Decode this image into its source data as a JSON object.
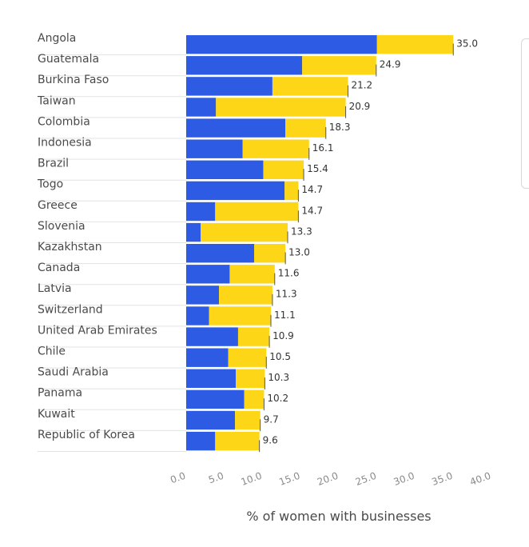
{
  "chart_data": {
    "type": "bar",
    "orientation": "horizontal",
    "stacked": true,
    "categories": [
      "Angola",
      "Guatemala",
      "Burkina Faso",
      "Taiwan",
      "Colombia",
      "Indonesia",
      "Brazil",
      "Togo",
      "Greece",
      "Slovenia",
      "Kazakhstan",
      "Canada",
      "Latvia",
      "Switzerland",
      "United Arab Emirates",
      "Chile",
      "Saudi Arabia",
      "Panama",
      "Kuwait",
      "Republic of Korea"
    ],
    "series": [
      {
        "color": "#2d5be3",
        "values": [
          25.0,
          15.2,
          11.3,
          3.9,
          13.0,
          7.4,
          10.1,
          12.9,
          3.8,
          1.9,
          8.9,
          5.7,
          4.3,
          3.0,
          6.8,
          5.5,
          6.5,
          7.6,
          6.4,
          3.8
        ]
      },
      {
        "color": "#fcd617",
        "values": [
          10.0,
          9.7,
          9.9,
          17.0,
          5.3,
          8.7,
          5.3,
          1.8,
          10.9,
          11.4,
          4.1,
          5.9,
          7.0,
          8.1,
          4.1,
          5.0,
          3.8,
          2.6,
          3.3,
          5.8
        ]
      }
    ],
    "totals": [
      "35.0",
      "24.9",
      "21.2",
      "20.9",
      "18.3",
      "16.1",
      "15.4",
      "14.7",
      "14.7",
      "13.3",
      "13.0",
      "11.6",
      "11.3",
      "11.1",
      "10.9",
      "10.5",
      "10.3",
      "10.2",
      "9.7",
      "9.6"
    ],
    "xlim": [
      0,
      40
    ],
    "xticks": [
      "0.0",
      "5.0",
      "10.0",
      "15.0",
      "20.0",
      "25.0",
      "30.0",
      "35.0",
      "40.0"
    ],
    "xlabel": "% of women with businesses",
    "grid": false
  }
}
